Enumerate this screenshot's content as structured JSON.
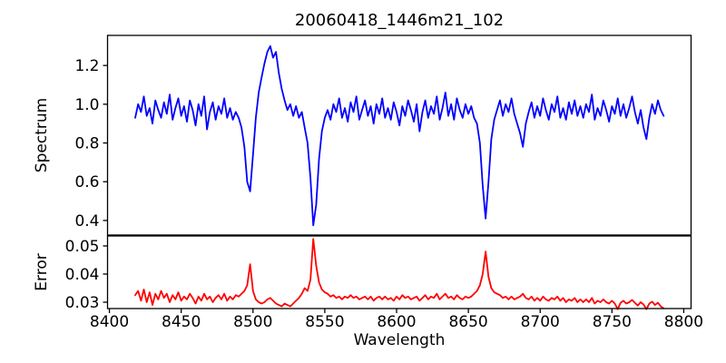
{
  "figure_title": "20060418_1446m21_102",
  "colors": {
    "spectrum_line": "#0000ff",
    "error_line": "#ff0000",
    "axis": "#000000",
    "background": "#ffffff"
  },
  "chart_data": [
    {
      "type": "line",
      "name": "spectrum",
      "title": "20060418_1446m21_102",
      "ylabel": "Spectrum",
      "xlabel": "",
      "color": "#0000ff",
      "legend": "none",
      "grid": false,
      "xlim": [
        8398.7,
        8805.1
      ],
      "ylim": [
        0.3247,
        1.3553
      ],
      "yticks": [
        1.2,
        1.0,
        0.8,
        0.6,
        0.4
      ],
      "ytick_labels": [
        "1.2",
        "1.0",
        "0.8",
        "0.6",
        "0.4"
      ],
      "xticks": [
        8400,
        8450,
        8500,
        8550,
        8600,
        8650,
        8700,
        8750,
        8800
      ],
      "xtick_labels": [],
      "features": {
        "absorption_dips": [
          {
            "wavelength": 8498,
            "min_value": 0.55
          },
          {
            "wavelength": 8542,
            "min_value": 0.375
          },
          {
            "wavelength": 8662,
            "min_value": 0.41
          },
          {
            "wavelength": 8688,
            "min_value": 0.78
          }
        ],
        "emission_peak": {
          "wavelength": 8512,
          "max_value": 1.3
        },
        "continuum_level": 0.97
      },
      "x_start": 8418,
      "x_step": 2,
      "y": [
        0.93,
        1.0,
        0.96,
        1.04,
        0.94,
        0.98,
        0.9,
        1.02,
        0.97,
        0.93,
        1.01,
        0.95,
        1.05,
        0.92,
        0.98,
        1.03,
        0.94,
        0.99,
        0.91,
        1.02,
        0.97,
        0.89,
        1.0,
        0.94,
        1.04,
        0.87,
        0.96,
        1.01,
        0.92,
        0.99,
        0.95,
        1.03,
        0.93,
        0.98,
        0.92,
        0.96,
        0.93,
        0.88,
        0.78,
        0.6,
        0.55,
        0.74,
        0.93,
        1.06,
        1.14,
        1.21,
        1.27,
        1.3,
        1.24,
        1.27,
        1.16,
        1.08,
        1.02,
        0.97,
        1.0,
        0.94,
        0.99,
        0.93,
        0.96,
        0.88,
        0.8,
        0.62,
        0.375,
        0.48,
        0.72,
        0.86,
        0.93,
        0.97,
        0.92,
        1.0,
        0.96,
        1.03,
        0.93,
        0.98,
        0.91,
        1.01,
        0.96,
        1.04,
        0.92,
        0.97,
        1.02,
        0.94,
        0.99,
        0.9,
        1.0,
        0.95,
        1.03,
        0.93,
        0.98,
        0.92,
        1.01,
        0.96,
        0.89,
        0.99,
        0.94,
        1.02,
        0.97,
        0.91,
        1.0,
        0.86,
        0.96,
        1.02,
        0.93,
        0.99,
        0.95,
        1.04,
        0.92,
        0.98,
        1.06,
        0.94,
        1.0,
        0.92,
        1.03,
        0.97,
        0.93,
        1.0,
        0.95,
        0.99,
        0.93,
        0.9,
        0.8,
        0.58,
        0.41,
        0.6,
        0.82,
        0.92,
        0.97,
        1.02,
        0.94,
        1.0,
        0.96,
        1.03,
        0.95,
        0.9,
        0.85,
        0.78,
        0.9,
        0.96,
        1.01,
        0.93,
        0.99,
        0.94,
        1.03,
        0.97,
        0.92,
        1.0,
        0.96,
        1.04,
        0.93,
        0.98,
        0.92,
        1.01,
        0.95,
        1.02,
        0.94,
        0.99,
        0.93,
        1.0,
        0.96,
        1.05,
        0.92,
        0.98,
        0.94,
        1.02,
        0.97,
        0.91,
        0.99,
        0.95,
        1.03,
        0.94,
        1.0,
        0.93,
        0.98,
        1.04,
        0.96,
        0.9,
        0.97,
        0.88,
        0.82,
        0.93,
        1.0,
        0.95,
        1.02,
        0.97,
        0.94
      ]
    },
    {
      "type": "line",
      "name": "error",
      "title": "",
      "ylabel": "Error",
      "xlabel": "Wavelength",
      "color": "#ff0000",
      "legend": "none",
      "grid": false,
      "xlim": [
        8398.7,
        8805.1
      ],
      "ylim": [
        0.02774,
        0.05355
      ],
      "yticks": [
        0.05,
        0.04,
        0.03
      ],
      "ytick_labels": [
        "0.05",
        "0.04",
        "0.03"
      ],
      "xticks": [
        8400,
        8450,
        8500,
        8550,
        8600,
        8650,
        8700,
        8750,
        8800
      ],
      "xtick_labels": [
        "8400",
        "8450",
        "8500",
        "8550",
        "8600",
        "8650",
        "8700",
        "8750",
        "8800"
      ],
      "features": {
        "spikes": [
          {
            "wavelength": 8498,
            "max_value": 0.0435
          },
          {
            "wavelength": 8542,
            "max_value": 0.0525
          },
          {
            "wavelength": 8662,
            "max_value": 0.048
          }
        ],
        "baseline_level": 0.032
      },
      "x_start": 8418,
      "x_step": 2,
      "y": [
        0.0325,
        0.034,
        0.0305,
        0.0345,
        0.03,
        0.0335,
        0.029,
        0.033,
        0.031,
        0.034,
        0.0315,
        0.033,
        0.03,
        0.0325,
        0.031,
        0.0335,
        0.0305,
        0.032,
        0.031,
        0.033,
        0.0315,
        0.0295,
        0.032,
        0.0305,
        0.033,
        0.031,
        0.032,
        0.03,
        0.0315,
        0.0325,
        0.031,
        0.033,
        0.0305,
        0.032,
        0.031,
        0.0325,
        0.032,
        0.033,
        0.034,
        0.036,
        0.0435,
        0.034,
        0.031,
        0.03,
        0.0295,
        0.03,
        0.031,
        0.0315,
        0.0305,
        0.0295,
        0.029,
        0.0285,
        0.0295,
        0.029,
        0.0285,
        0.0295,
        0.0305,
        0.0315,
        0.033,
        0.035,
        0.034,
        0.038,
        0.0525,
        0.043,
        0.037,
        0.0345,
        0.0335,
        0.033,
        0.032,
        0.0325,
        0.0315,
        0.032,
        0.031,
        0.032,
        0.0315,
        0.0325,
        0.0315,
        0.032,
        0.031,
        0.0315,
        0.032,
        0.031,
        0.032,
        0.0305,
        0.0315,
        0.032,
        0.031,
        0.032,
        0.031,
        0.0315,
        0.0305,
        0.032,
        0.031,
        0.0325,
        0.0315,
        0.032,
        0.031,
        0.0315,
        0.032,
        0.0305,
        0.0315,
        0.0325,
        0.031,
        0.032,
        0.0315,
        0.033,
        0.031,
        0.032,
        0.033,
        0.0315,
        0.032,
        0.031,
        0.0325,
        0.0315,
        0.031,
        0.032,
        0.0315,
        0.032,
        0.033,
        0.034,
        0.036,
        0.04,
        0.048,
        0.039,
        0.035,
        0.0335,
        0.033,
        0.0325,
        0.0315,
        0.032,
        0.031,
        0.032,
        0.031,
        0.0315,
        0.032,
        0.033,
        0.0315,
        0.031,
        0.032,
        0.0305,
        0.0315,
        0.0305,
        0.032,
        0.031,
        0.0305,
        0.0315,
        0.031,
        0.032,
        0.0305,
        0.0315,
        0.03,
        0.031,
        0.0305,
        0.0315,
        0.03,
        0.031,
        0.03,
        0.031,
        0.03,
        0.0315,
        0.0295,
        0.0305,
        0.03,
        0.031,
        0.03,
        0.0295,
        0.0305,
        0.0295,
        0.0275,
        0.0298,
        0.0305,
        0.0295,
        0.03,
        0.0308,
        0.0298,
        0.0288,
        0.03,
        0.0292,
        0.0275,
        0.0295,
        0.0302,
        0.029,
        0.0298,
        0.0285,
        0.0278
      ]
    }
  ]
}
